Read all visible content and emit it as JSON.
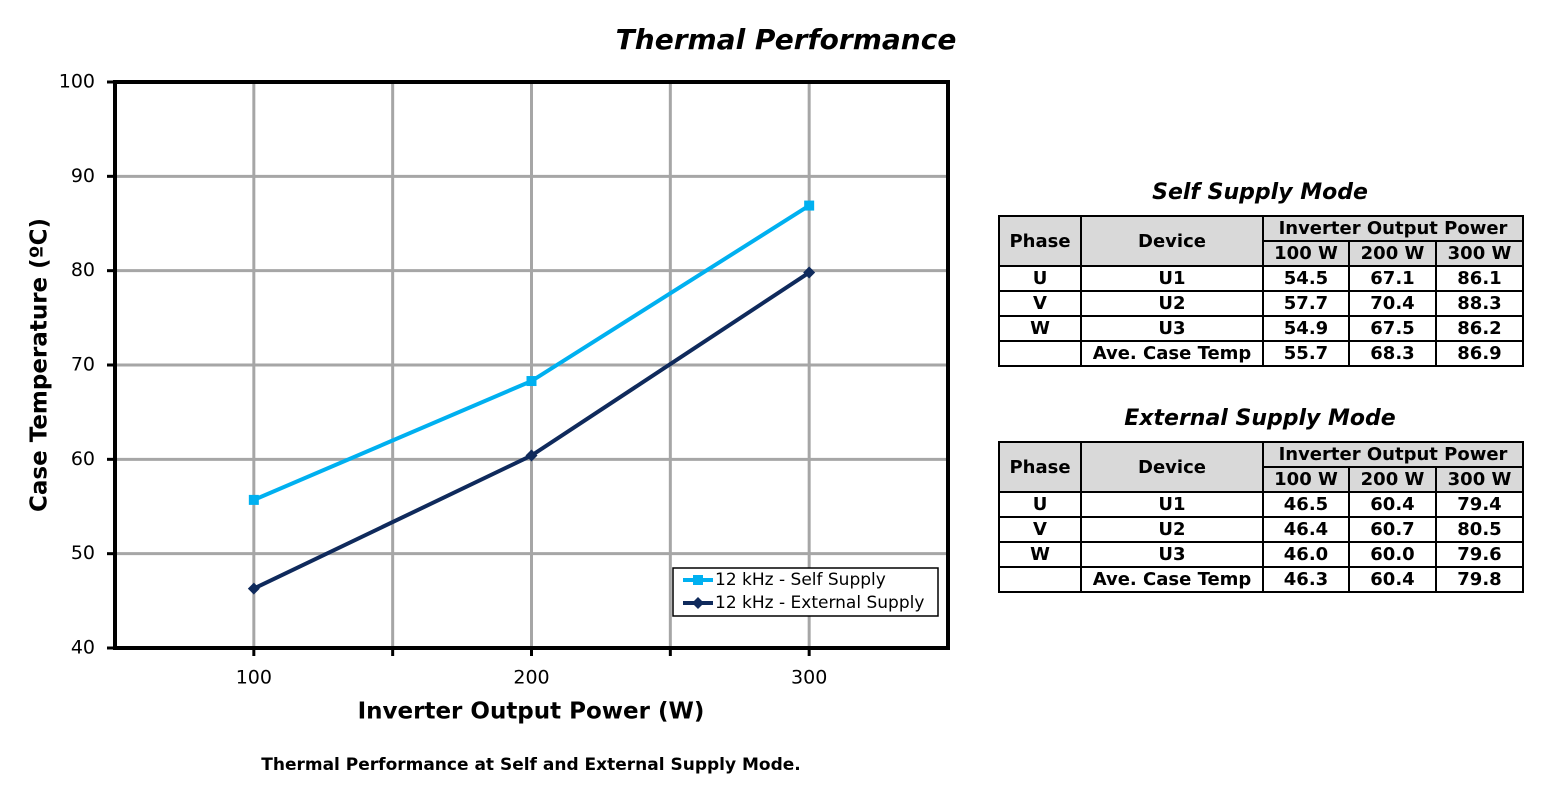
{
  "chart_data": {
    "type": "line",
    "title": "Thermal Performance",
    "xlabel": "Inverter Output Power (W)",
    "ylabel": "Case Temperature (ºC)",
    "x": [
      100,
      200,
      300
    ],
    "series": [
      {
        "name": "12 kHz - Self Supply",
        "color": "#00b0f0",
        "marker": "square",
        "values": [
          55.7,
          68.3,
          86.9
        ]
      },
      {
        "name": "12 kHz - External Supply",
        "color": "#0f2a5c",
        "marker": "diamond",
        "values": [
          46.3,
          60.4,
          79.8
        ]
      }
    ],
    "xlim": [
      50,
      350
    ],
    "xticks": [
      100,
      200,
      300
    ],
    "xminor": [
      150,
      250
    ],
    "ylim": [
      40,
      100
    ],
    "yticks": [
      40,
      50,
      60,
      70,
      80,
      90,
      100
    ],
    "grid": true,
    "legend": "lower right"
  },
  "tables": [
    {
      "title": "Self Supply Mode",
      "group": "Inverter Output Power",
      "header": [
        "Phase",
        "Device",
        "100 W",
        "200 W",
        "300 W"
      ],
      "rows": [
        [
          "U",
          "U1",
          "54.5",
          "67.1",
          "86.1"
        ],
        [
          "V",
          "U2",
          "57.7",
          "70.4",
          "88.3"
        ],
        [
          "W",
          "U3",
          "54.9",
          "67.5",
          "86.2"
        ]
      ],
      "average": [
        "Ave. Case Temp",
        "55.7",
        "68.3",
        "86.9"
      ]
    },
    {
      "title": "External Supply Mode",
      "group": "Inverter Output Power",
      "header": [
        "Phase",
        "Device",
        "100 W",
        "200 W",
        "300 W"
      ],
      "rows": [
        [
          "U",
          "U1",
          "46.5",
          "60.4",
          "79.4"
        ],
        [
          "V",
          "U2",
          "46.4",
          "60.7",
          "80.5"
        ],
        [
          "W",
          "U3",
          "46.0",
          "60.0",
          "79.6"
        ]
      ],
      "average": [
        "Ave. Case Temp",
        "46.3",
        "60.4",
        "79.8"
      ]
    }
  ],
  "caption": "Thermal Performance at Self and External Supply Mode."
}
